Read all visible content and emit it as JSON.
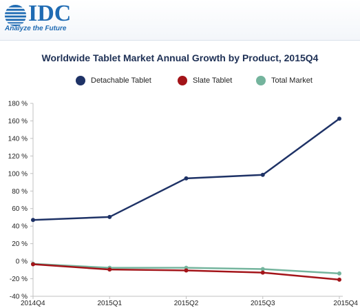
{
  "logo": {
    "brand": "IDC",
    "tagline": "Analyze the Future",
    "color": "#1f6bb3"
  },
  "chart_data": {
    "type": "line",
    "title": "Worldwide Tablet Market Annual Growth by Product, 2015Q4",
    "categories": [
      "2014Q4",
      "2015Q1",
      "2015Q2",
      "2015Q3",
      "2015Q4"
    ],
    "ylim": [
      -40,
      180
    ],
    "yticks": [
      -40,
      -20,
      0,
      20,
      40,
      60,
      80,
      100,
      120,
      140,
      160,
      180
    ],
    "ytick_labels": [
      "-40 %",
      "-20 %",
      "0 %",
      "20 %",
      "40 %",
      "60 %",
      "80 %",
      "100 %",
      "120 %",
      "140 %",
      "160 %",
      "180 %"
    ],
    "grid": false,
    "legend_position": "top",
    "series": [
      {
        "name": "Detachable Tablet",
        "color": "#1e3266",
        "values": [
          47,
          50.5,
          94.5,
          98.5,
          162.5
        ]
      },
      {
        "name": "Slate Tablet",
        "color": "#a31419",
        "values": [
          -3.5,
          -9.5,
          -10.5,
          -13,
          -21
        ]
      },
      {
        "name": "Total Market",
        "color": "#74b49d",
        "values": [
          -3,
          -7.5,
          -7.5,
          -9,
          -14
        ]
      }
    ]
  }
}
